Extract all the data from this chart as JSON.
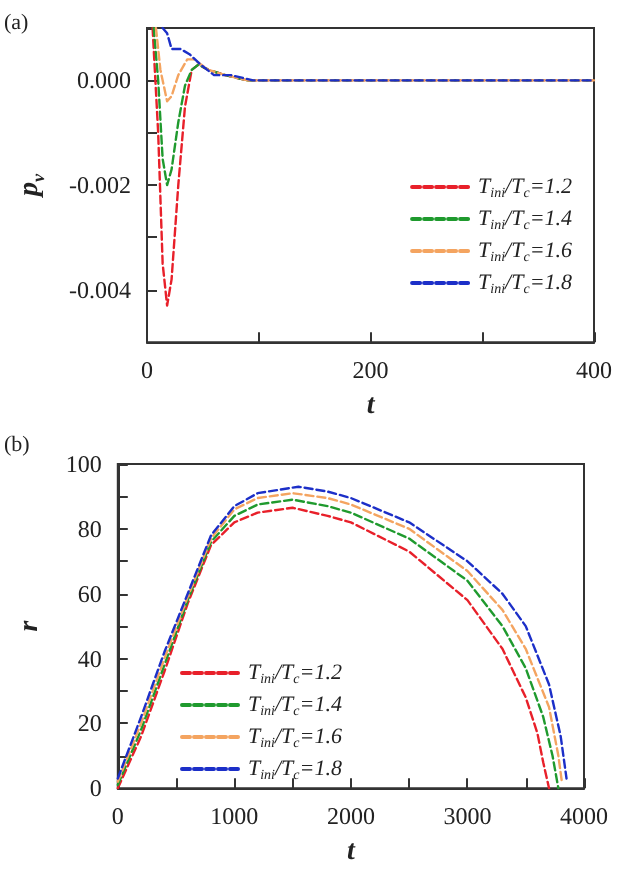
{
  "chart_data": [
    {
      "type": "line",
      "annotations": [
        "(a)"
      ],
      "xlabel": "t",
      "ylabel": "p$_{v}$",
      "xlim": [
        0,
        400
      ],
      "ylim": [
        -0.005,
        0.001
      ],
      "xticks": [
        0,
        {
          "value": 100,
          "label": null
        },
        200,
        {
          "value": 300,
          "label": null
        },
        400
      ],
      "yticks": [
        {
          "value": -0.005,
          "label": null
        },
        -0.004,
        {
          "value": -0.003,
          "label": null
        },
        -0.002,
        {
          "value": -0.001,
          "label": null
        },
        {
          "value": 0,
          "label": "0.000"
        },
        {
          "value": 0.001,
          "label": null
        }
      ],
      "legend": "bottom right",
      "grid": false,
      "marker": "none",
      "series": [
        {
          "name": "T$_{ini}$/T$_{c}$=1.2",
          "color": "#e8202a",
          "line_style": "dashed",
          "x": [
            5,
            10,
            14,
            18,
            22,
            28,
            34,
            40,
            46,
            55,
            70,
            90,
            400
          ],
          "values": [
            0.001,
            -0.001,
            -0.0035,
            -0.0043,
            -0.0038,
            -0.002,
            -0.0005,
            0.0002,
            0.0003,
            0.0002,
            0.0001,
            0,
            0
          ]
        },
        {
          "name": "T$_{ini}$/T$_{c}$=1.4",
          "color": "#1f9a2e",
          "line_style": "dashed",
          "x": [
            6,
            10,
            14,
            18,
            22,
            28,
            34,
            40,
            46,
            55,
            70,
            90,
            400
          ],
          "values": [
            0.001,
            0,
            -0.0015,
            -0.002,
            -0.0017,
            -0.0008,
            -0.0001,
            0.0002,
            0.0003,
            0.0002,
            0.0001,
            0,
            0
          ]
        },
        {
          "name": "T$_{ini}$/T$_{c}$=1.6",
          "color": "#f4a460",
          "line_style": "dashed",
          "x": [
            8,
            12,
            18,
            22,
            28,
            36,
            42,
            55,
            70,
            90,
            400
          ],
          "values": [
            0.001,
            0.0002,
            -0.0004,
            -0.0003,
            0.0001,
            0.0004,
            0.0004,
            0.0002,
            0.0001,
            0,
            0
          ]
        },
        {
          "name": "T$_{ini}$/T$_{c}$=1.8",
          "color": "#1c2fc8",
          "line_style": "dashed",
          "x": [
            14,
            18,
            22,
            30,
            38,
            48,
            60,
            75,
            95,
            400
          ],
          "values": [
            0.001,
            0.0009,
            0.0006,
            0.0006,
            0.0005,
            0.0003,
            0.0001,
            0.0001,
            0,
            0
          ]
        }
      ]
    },
    {
      "type": "line",
      "annotations": [
        "(b)"
      ],
      "xlabel": "t",
      "ylabel": "r",
      "xlim": [
        0,
        4000
      ],
      "ylim": [
        0,
        100
      ],
      "xticks": [
        0,
        {
          "value": 500,
          "label": null
        },
        1000,
        {
          "value": 1500,
          "label": null
        },
        2000,
        {
          "value": 2500,
          "label": null
        },
        3000,
        {
          "value": 3500,
          "label": null
        },
        4000
      ],
      "yticks": [
        0,
        {
          "value": 10,
          "label": null
        },
        20,
        {
          "value": 30,
          "label": null
        },
        40,
        {
          "value": 50,
          "label": null
        },
        60,
        {
          "value": 70,
          "label": null
        },
        80,
        {
          "value": 90,
          "label": null
        },
        100
      ],
      "legend": "bottom left",
      "grid": false,
      "marker": "none",
      "series": [
        {
          "name": "T$_{ini}$/T$_{c}$=1.2",
          "color": "#e8202a",
          "line_style": "dashed",
          "x": [
            0,
            200,
            400,
            600,
            800,
            1000,
            1200,
            1500,
            1800,
            2000,
            2500,
            3000,
            3300,
            3500,
            3600,
            3650,
            3700
          ],
          "values": [
            0,
            16,
            36,
            57,
            75,
            82,
            85,
            86.5,
            84,
            82,
            73,
            58,
            43,
            28,
            17,
            8,
            0
          ]
        },
        {
          "name": "T$_{ini}$/T$_{c}$=1.4",
          "color": "#1f9a2e",
          "line_style": "dashed",
          "x": [
            0,
            200,
            400,
            600,
            800,
            1000,
            1200,
            1500,
            1800,
            2000,
            2500,
            3000,
            3300,
            3500,
            3650,
            3730,
            3780
          ],
          "values": [
            1,
            18,
            38,
            58,
            76,
            84,
            87.5,
            89,
            87,
            85,
            77,
            64,
            50,
            37,
            22,
            10,
            0
          ]
        },
        {
          "name": "T$_{ini}$/T$_{c}$=1.6",
          "color": "#f4a460",
          "line_style": "dashed",
          "x": [
            0,
            200,
            400,
            600,
            800,
            1000,
            1200,
            1500,
            1800,
            2000,
            2500,
            3000,
            3300,
            3500,
            3700,
            3780,
            3810
          ],
          "values": [
            2,
            20,
            40,
            59,
            77,
            86,
            89.5,
            91,
            89.5,
            87.5,
            80,
            67,
            55,
            43,
            25,
            10,
            2
          ]
        },
        {
          "name": "T$_{ini}$/T$_{c}$=1.8",
          "color": "#1c2fc8",
          "line_style": "dashed",
          "x": [
            0,
            200,
            400,
            600,
            800,
            1000,
            1200,
            1550,
            1800,
            2000,
            2500,
            3000,
            3300,
            3500,
            3700,
            3800,
            3850
          ],
          "values": [
            3,
            22,
            42,
            60,
            78,
            87,
            91,
            93,
            91.5,
            89.5,
            82,
            70,
            60,
            50,
            32,
            16,
            3
          ]
        }
      ]
    }
  ]
}
